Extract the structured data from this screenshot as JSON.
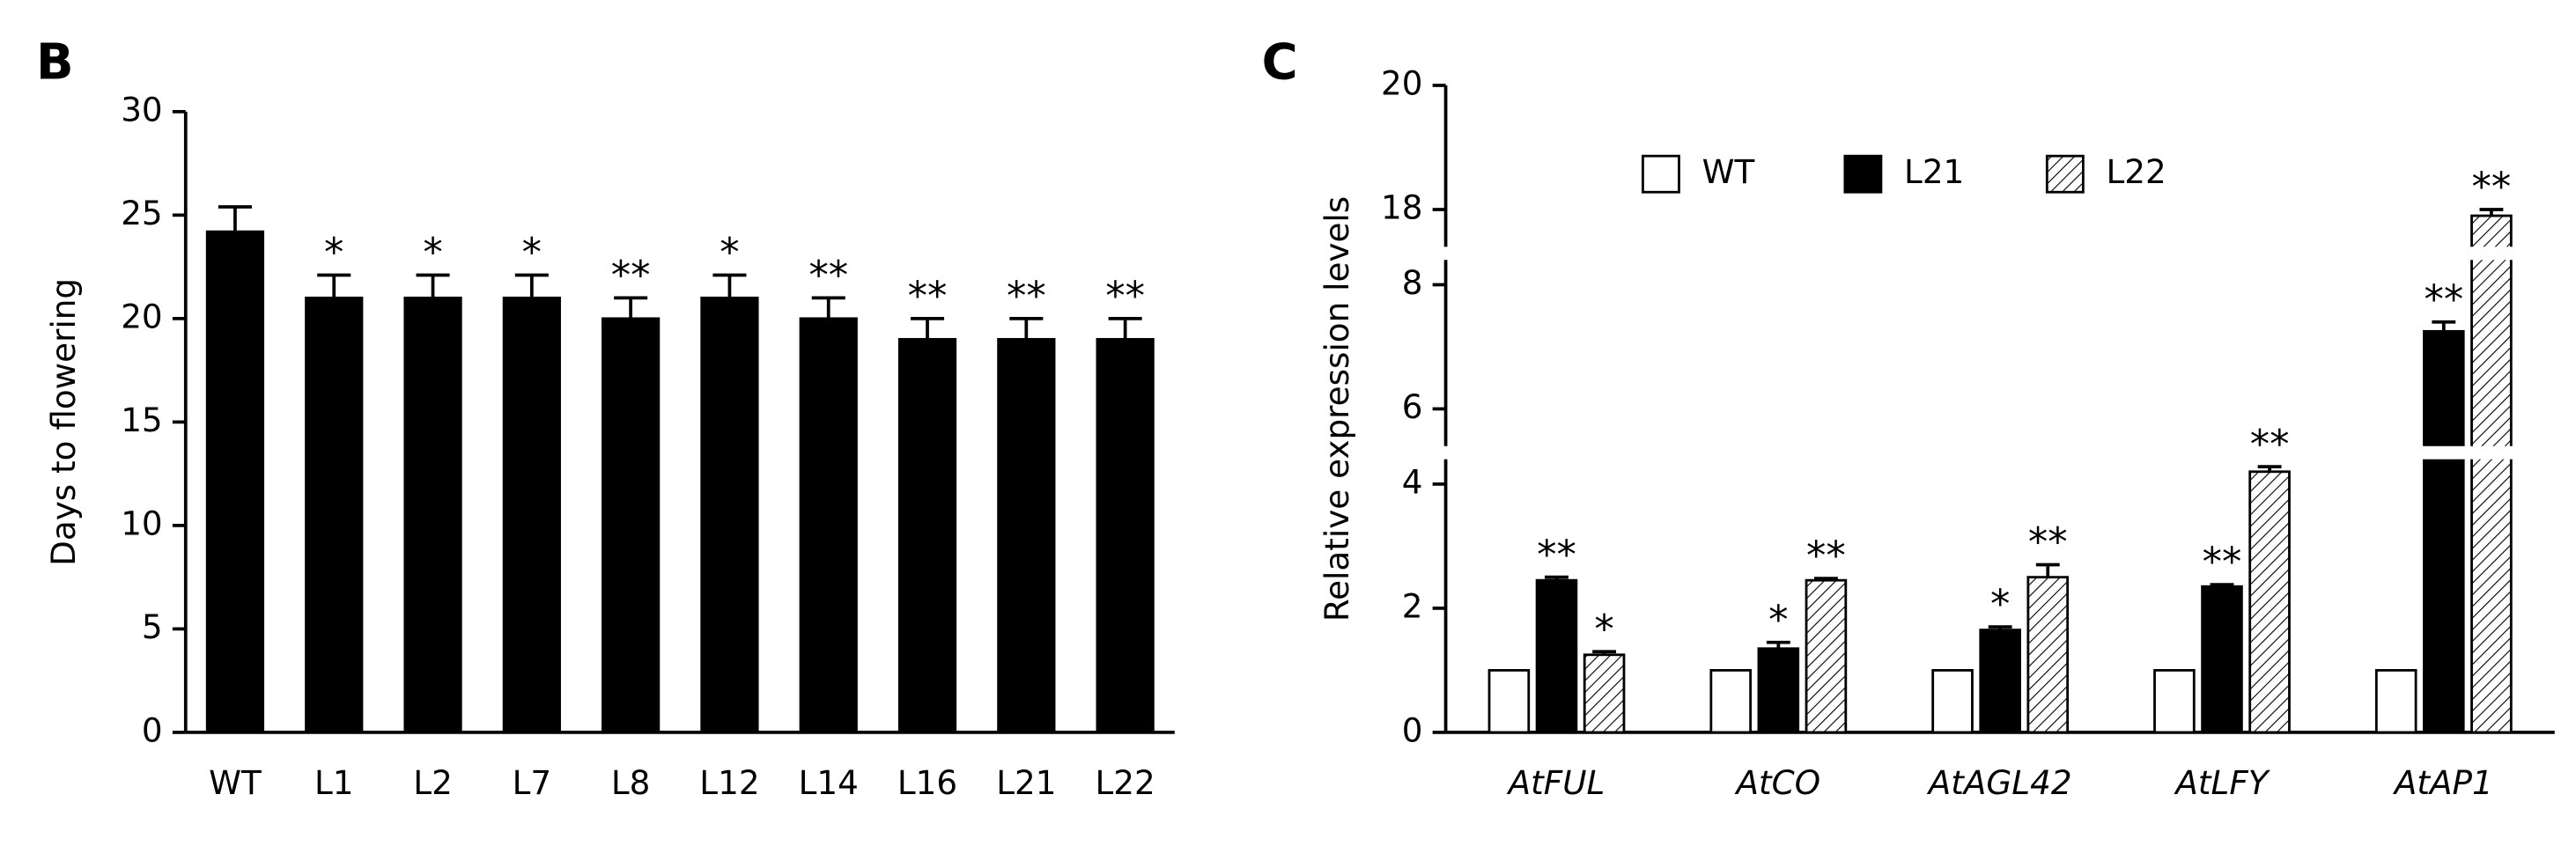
{
  "chart_data": [
    {
      "type": "bar",
      "panel_label": "B",
      "y_label": "Days to flowering",
      "categories": [
        "WT",
        "L1",
        "L2",
        "L7",
        "L8",
        "L12",
        "L14",
        "L16",
        "L21",
        "L22"
      ],
      "values": [
        24.2,
        21,
        21,
        21,
        20,
        21,
        20,
        19,
        19,
        19
      ],
      "errors": [
        1.2,
        1.1,
        1.1,
        1.1,
        1.0,
        1.1,
        1.0,
        1.0,
        1.0,
        1.0
      ],
      "annotations": [
        null,
        "*",
        "*",
        "*",
        "**",
        "*",
        "**",
        "**",
        "**",
        "**"
      ],
      "color": "#000000",
      "ylim": [
        0,
        30
      ],
      "yticks": [
        0,
        5,
        10,
        15,
        20,
        25,
        30
      ]
    },
    {
      "type": "bar",
      "panel_label": "C",
      "y_label": "Relative expression levels",
      "categories": [
        "AtFUL",
        "AtCO",
        "AtAGL42",
        "AtLFY",
        "AtAP1"
      ],
      "series": [
        {
          "name": "WT",
          "color": "#ffffff",
          "hatch": false,
          "values": [
            1,
            1,
            1,
            1,
            1
          ],
          "errors": [
            0,
            0,
            0,
            0,
            0
          ],
          "annotations": [
            null,
            null,
            null,
            null,
            null
          ]
        },
        {
          "name": "L21",
          "color": "#000000",
          "hatch": false,
          "values": [
            2.45,
            1.35,
            1.65,
            2.35,
            7.25
          ],
          "errors": [
            0.05,
            0.1,
            0.05,
            0.03,
            0.15
          ],
          "annotations": [
            "**",
            "*",
            "*",
            "**",
            "**"
          ]
        },
        {
          "name": "L22",
          "color": "#ffffff",
          "hatch": true,
          "values": [
            1.25,
            2.45,
            2.5,
            4.2,
            17.9
          ],
          "errors": [
            0.05,
            0.03,
            0.2,
            0.08,
            0.1
          ],
          "annotations": [
            "*",
            "**",
            "**",
            "**",
            "**"
          ]
        }
      ],
      "ylim": [
        0,
        20
      ],
      "axis_breaks": [
        [
          4.4,
          5.4
        ],
        [
          8.4,
          17.4
        ]
      ],
      "yticks": [
        0,
        2,
        4,
        6,
        8,
        18,
        20
      ],
      "legend": "top"
    }
  ]
}
